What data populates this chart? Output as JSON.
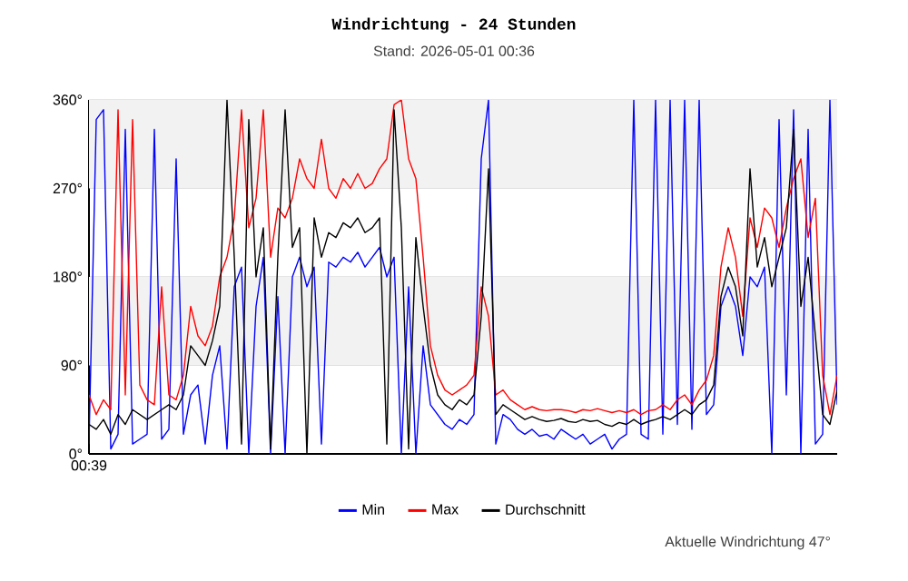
{
  "chart_data": {
    "type": "line",
    "title": "Windrichtung - 24 Stunden",
    "subtitle": "Stand: 2026-05-01 00:36",
    "categories": [
      "00:39",
      null,
      null,
      null,
      null,
      null,
      null,
      null,
      null,
      null,
      null,
      null,
      null,
      null,
      null,
      null,
      null,
      null,
      null,
      null,
      null,
      null,
      null,
      null,
      null,
      null,
      null,
      null,
      null,
      null,
      null,
      null,
      null,
      null,
      null,
      null,
      null,
      null,
      null,
      null,
      null,
      null,
      null,
      null,
      null,
      null,
      null,
      null,
      null,
      null,
      null,
      null,
      null,
      null,
      null,
      null,
      null,
      null,
      null,
      null,
      null,
      null,
      null,
      null,
      null,
      null,
      null,
      null,
      null,
      null,
      null,
      null,
      null,
      null,
      null,
      null,
      null,
      null,
      null,
      null,
      null,
      null,
      null,
      null,
      null,
      null,
      null,
      null,
      null,
      null,
      null,
      null,
      null,
      null,
      null,
      null,
      null,
      null,
      null,
      null,
      null,
      null,
      null,
      null
    ],
    "series": [
      {
        "name": "Min",
        "color": "#0000ff",
        "values": [
          10,
          340,
          350,
          5,
          20,
          330,
          10,
          15,
          20,
          330,
          15,
          25,
          300,
          20,
          60,
          70,
          10,
          80,
          110,
          5,
          170,
          190,
          0,
          150,
          200,
          0,
          160,
          0,
          180,
          200,
          170,
          190,
          10,
          195,
          190,
          200,
          195,
          205,
          190,
          200,
          210,
          180,
          200,
          0,
          170,
          0,
          110,
          50,
          40,
          30,
          25,
          35,
          30,
          40,
          300,
          360,
          10,
          40,
          35,
          25,
          20,
          25,
          18,
          20,
          15,
          25,
          20,
          15,
          20,
          10,
          15,
          20,
          5,
          15,
          20,
          360,
          20,
          15,
          360,
          20,
          360,
          30,
          360,
          25,
          360,
          40,
          50,
          150,
          170,
          150,
          100,
          180,
          170,
          190,
          0,
          340,
          60,
          350,
          0,
          330,
          10,
          20,
          360,
          50
        ]
      },
      {
        "name": "Max",
        "color": "#ff0000",
        "values": [
          60,
          40,
          55,
          45,
          350,
          60,
          340,
          70,
          55,
          50,
          170,
          60,
          55,
          80,
          150,
          120,
          110,
          130,
          180,
          200,
          240,
          350,
          230,
          260,
          350,
          200,
          250,
          240,
          260,
          300,
          280,
          270,
          320,
          270,
          260,
          280,
          270,
          285,
          270,
          275,
          290,
          300,
          355,
          360,
          300,
          280,
          200,
          110,
          80,
          65,
          60,
          65,
          70,
          80,
          170,
          140,
          60,
          65,
          55,
          50,
          45,
          48,
          45,
          44,
          45,
          45,
          44,
          42,
          45,
          44,
          46,
          44,
          42,
          44,
          42,
          45,
          40,
          44,
          45,
          50,
          45,
          55,
          60,
          50,
          65,
          75,
          100,
          190,
          230,
          200,
          140,
          240,
          210,
          250,
          240,
          210,
          250,
          280,
          300,
          220,
          260,
          80,
          40,
          80
        ]
      },
      {
        "name": "Durchschnitt",
        "color": "#000000",
        "values": [
          30,
          25,
          35,
          20,
          40,
          30,
          45,
          40,
          35,
          40,
          45,
          50,
          45,
          60,
          110,
          100,
          90,
          115,
          150,
          360,
          200,
          10,
          340,
          180,
          230,
          5,
          200,
          350,
          210,
          230,
          0,
          240,
          200,
          225,
          220,
          235,
          230,
          240,
          225,
          230,
          240,
          10,
          350,
          230,
          5,
          220,
          150,
          90,
          60,
          50,
          45,
          55,
          50,
          60,
          140,
          290,
          40,
          50,
          45,
          40,
          35,
          38,
          35,
          33,
          34,
          36,
          33,
          32,
          35,
          33,
          34,
          30,
          28,
          32,
          30,
          35,
          30,
          33,
          35,
          38,
          35,
          40,
          45,
          40,
          50,
          55,
          70,
          160,
          190,
          170,
          120,
          290,
          190,
          220,
          170,
          200,
          230,
          330,
          150,
          200,
          120,
          40,
          30,
          65
        ]
      }
    ],
    "ylim": [
      0,
      360
    ],
    "yticks": [
      {
        "value": 0,
        "label": "0°"
      },
      {
        "value": 90,
        "label": "90°"
      },
      {
        "value": 180,
        "label": "180°"
      },
      {
        "value": 270,
        "label": "270°"
      },
      {
        "value": 360,
        "label": "360°"
      }
    ],
    "bands": [
      {
        "axis": "y",
        "from": 90,
        "to": 180,
        "color": "#f2f2f2"
      },
      {
        "axis": "y",
        "from": 270,
        "to": 360,
        "color": "#f2f2f2"
      }
    ],
    "grid": "y",
    "legend": "bottom",
    "annotations": [
      "Aktuelle Windrichtung 47°"
    ]
  }
}
